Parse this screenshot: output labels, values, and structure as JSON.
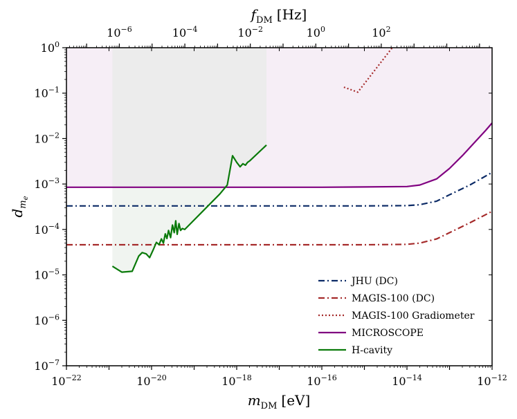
{
  "chart_data": {
    "type": "line",
    "xscale": "log",
    "yscale": "log",
    "xlabel": "m_DM [eV]",
    "xlabel_main": "m",
    "xlabel_sub": "DM",
    "xlabel_unit": "[eV]",
    "top_xlabel": "f_DM [Hz]",
    "top_xlabel_main": "f",
    "top_xlabel_sub": "DM",
    "top_xlabel_unit": "[Hz]",
    "ylabel": "d_me",
    "ylabel_main": "d",
    "ylabel_sub": "m",
    "ylabel_subsub": "e",
    "xlim": [
      1e-22,
      1e-12
    ],
    "ylim": [
      1e-07,
      1
    ],
    "top_xlim": [
      2.42e-08,
      242000
    ],
    "x_tick_exponents": [
      -22,
      -20,
      -18,
      -16,
      -14,
      -12
    ],
    "y_tick_exponents": [
      -7,
      -6,
      -5,
      -4,
      -3,
      -2,
      -1,
      0
    ],
    "top_tick_exponents": [
      -6,
      -4,
      -2,
      0,
      2
    ],
    "legend_position": "lower-right",
    "shaded_regions": [
      {
        "name": "MICROSCOPE excluded",
        "color": "#f6eef6",
        "x_range": [
          1e-22,
          1e-12
        ],
        "y_lower": "MICROSCOPE curve",
        "y_upper": 1
      },
      {
        "name": "H-cavity excluded",
        "color": "#e4ebe4",
        "x_range": [
          1.2e-21,
          5e-18
        ],
        "y_lower": "H-cavity curve",
        "y_upper": 1
      }
    ],
    "series": [
      {
        "name": "JHU (DC)",
        "color": "#0b2a66",
        "style": "dashdot",
        "x": [
          1e-22,
          1e-20,
          1e-18,
          1e-16,
          1e-15,
          1e-14,
          2e-14,
          5e-14,
          1e-13,
          3e-13,
          1e-12
        ],
        "y": [
          0.00033,
          0.00033,
          0.00033,
          0.00033,
          0.00033,
          0.000335,
          0.00035,
          0.00042,
          0.00058,
          0.00095,
          0.0018
        ]
      },
      {
        "name": "MAGIS-100 (DC)",
        "color": "#a52a2a",
        "style": "dashdot",
        "x": [
          1e-22,
          1e-20,
          1e-18,
          1e-16,
          1e-15,
          1e-14,
          2e-14,
          5e-14,
          1e-13,
          3e-13,
          1e-12
        ],
        "y": [
          4.6e-05,
          4.6e-05,
          4.6e-05,
          4.6e-05,
          4.6e-05,
          4.7e-05,
          5e-05,
          6.2e-05,
          8.5e-05,
          0.00014,
          0.00025
        ]
      },
      {
        "name": "MAGIS-100 Gradiometer",
        "color": "#a52a2a",
        "style": "dotted",
        "x": [
          3.3e-16,
          7e-16,
          4.5e-15
        ],
        "y": [
          0.135,
          0.105,
          1.0
        ]
      },
      {
        "name": "MICROSCOPE",
        "color": "#800080",
        "style": "solid",
        "x": [
          1e-22,
          1e-20,
          1e-18,
          1e-16,
          1e-15,
          1e-14,
          2e-14,
          5e-14,
          1e-13,
          2e-13,
          4e-13,
          7e-13,
          1e-12
        ],
        "y": [
          0.00085,
          0.00085,
          0.00085,
          0.00085,
          0.00086,
          0.00088,
          0.00095,
          0.0013,
          0.0022,
          0.0042,
          0.0085,
          0.015,
          0.022
        ]
      },
      {
        "name": "H-cavity",
        "color": "#0a7a0a",
        "style": "solid",
        "x": [
          1.2e-21,
          2e-21,
          3.5e-21,
          5e-21,
          6e-21,
          7.5e-21,
          9e-21,
          1.1e-20,
          1.3e-20,
          1.5e-20,
          1.7e-20,
          1.9e-20,
          2.1e-20,
          2.3e-20,
          2.5e-20,
          2.8e-20,
          3.1e-20,
          3.4e-20,
          3.7e-20,
          4e-20,
          4.4e-20,
          4.8e-20,
          5.3e-20,
          6e-20,
          4e-19,
          6e-19,
          8e-19,
          1e-18,
          1.2e-18,
          1.4e-18,
          1.6e-18,
          1.8e-18,
          2e-18,
          5e-18
        ],
        "y": [
          1.55e-05,
          1.15e-05,
          1.2e-05,
          2.6e-05,
          3.1e-05,
          2.9e-05,
          2.4e-05,
          3.6e-05,
          5.2e-05,
          4.6e-05,
          6.2e-05,
          5e-05,
          8e-05,
          6.3e-05,
          9.5e-05,
          6.6e-05,
          0.000125,
          8.5e-05,
          0.000155,
          7.8e-05,
          0.000135,
          9.5e-05,
          0.000105,
          0.0001,
          0.0006,
          0.00095,
          0.0042,
          0.003,
          0.0024,
          0.0028,
          0.0026,
          0.003,
          0.0032,
          0.0072
        ]
      }
    ]
  }
}
